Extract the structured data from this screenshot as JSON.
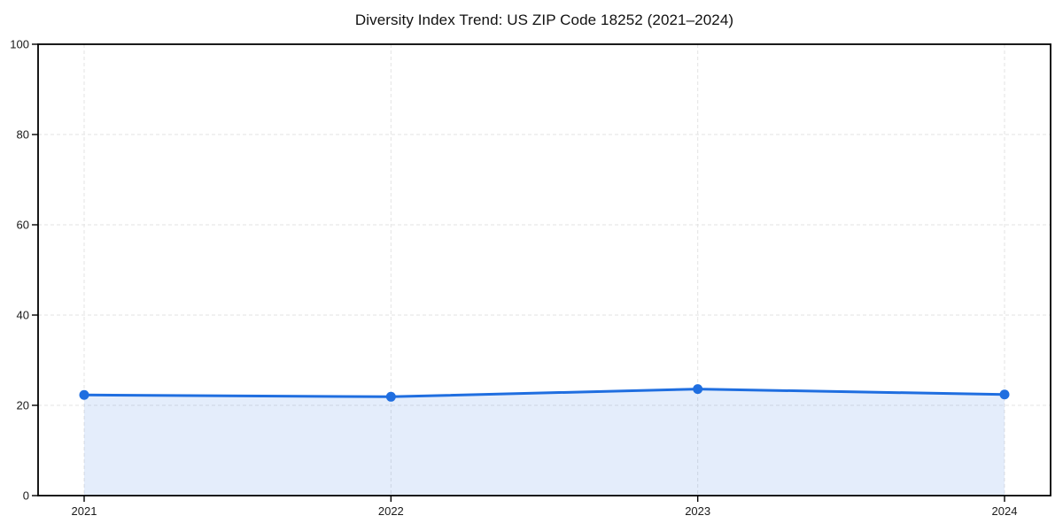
{
  "chart": {
    "background": "#ffffff",
    "frame_color": "#000000",
    "grid_color": "#e3e3e3",
    "tick_label_color": "#1a1a1a"
  },
  "chart_data": {
    "type": "line",
    "title": "Diversity Index Trend: US ZIP Code 18252 (2021–2024)",
    "categories": [
      "2021",
      "2022",
      "2023",
      "2024"
    ],
    "series": [
      {
        "name": "Diversity Index",
        "values": [
          22.3,
          21.9,
          23.6,
          22.4
        ]
      }
    ],
    "xlabel": "",
    "ylabel": "",
    "ylim": [
      0,
      100
    ],
    "yticks": [
      0,
      20,
      40,
      60,
      80,
      100
    ],
    "grid": "dashed, horizontal and vertical",
    "legend_position": "none",
    "line_color": "#1f6ee0",
    "marker": "circle",
    "marker_color": "#1f6ee0",
    "area_fill": true,
    "area_fill_color": "rgba(31,110,224,0.12)"
  }
}
